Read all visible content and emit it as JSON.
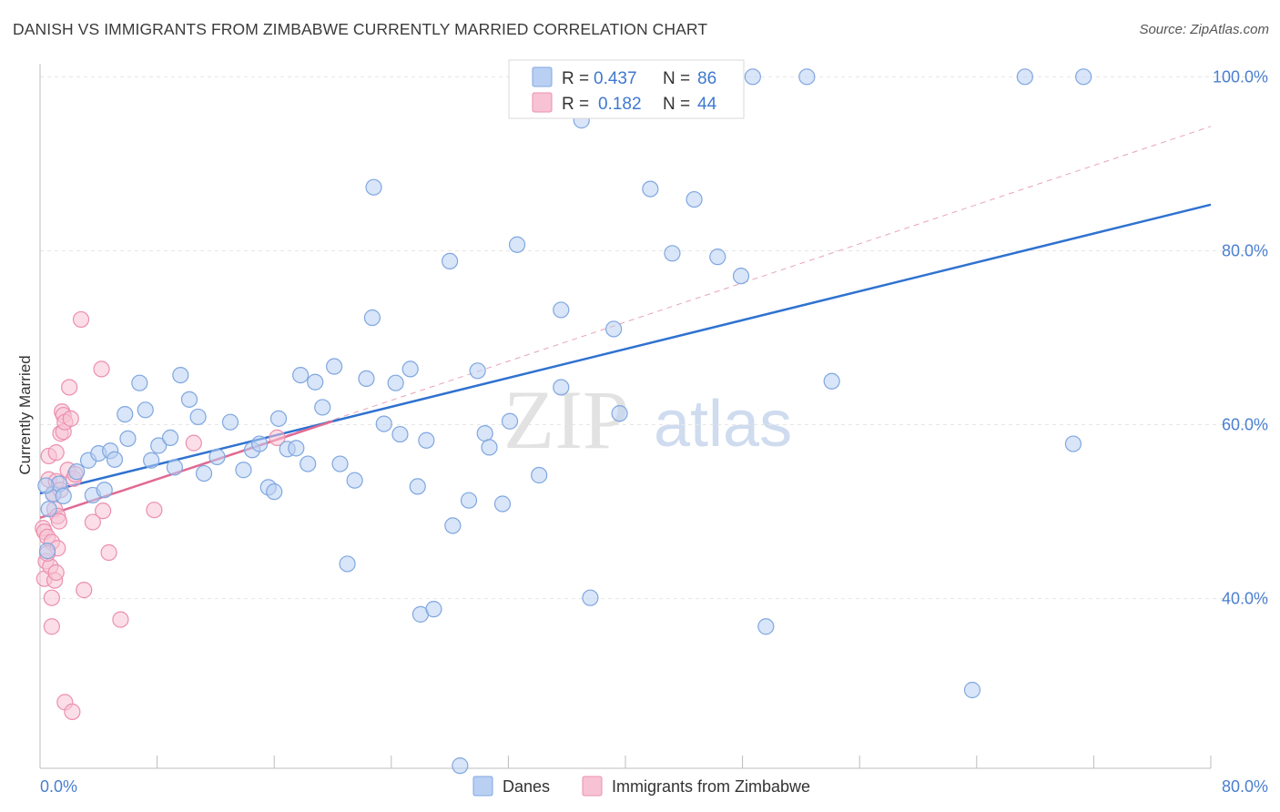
{
  "title": "DANISH VS IMMIGRANTS FROM ZIMBABWE CURRENTLY MARRIED CORRELATION CHART",
  "source": "Source: ZipAtlas.com",
  "watermark": {
    "zip": "ZIP",
    "atlas": "atlas"
  },
  "colors": {
    "danes_fill": "#b9d0f3",
    "danes_stroke": "#7fa7e0",
    "danes_line": "#2f72d0",
    "zim_fill": "#f7c3d4",
    "zim_stroke": "#ec8fae",
    "zim_line": "#e06a93",
    "grid": "#e6e6e6",
    "axis_label": "#4a7fd0"
  },
  "legend": {
    "rows": [
      {
        "r_label": "R =",
        "r_value": "0.437",
        "n_label": "N =",
        "n_value": "86"
      },
      {
        "r_label": "R =",
        "r_value": "0.182",
        "n_label": "N =",
        "n_value": "44"
      }
    ]
  },
  "chart_data": {
    "type": "scatter",
    "xlabel": "",
    "ylabel": "Currently Married",
    "xlim": [
      0,
      80
    ],
    "ylim": [
      20.5,
      101.5
    ],
    "x_tick_labels": [
      {
        "value": 0,
        "label": "0.0%"
      },
      {
        "value": 80,
        "label": "80.0%"
      }
    ],
    "y_tick_labels": [
      {
        "value": 100,
        "label": "100.0%"
      },
      {
        "value": 80,
        "label": "80.0%"
      },
      {
        "value": 60,
        "label": "60.0%"
      },
      {
        "value": 40,
        "label": "40.0%"
      }
    ],
    "grid": true,
    "legend_position": "top-center",
    "series": [
      {
        "name": "Danes",
        "trend": {
          "x": [
            0,
            80
          ],
          "y": [
            52.1,
            85.3
          ]
        },
        "points": [
          [
            0.5,
            45.5
          ],
          [
            0.6,
            50.3
          ],
          [
            0.9,
            52.0
          ],
          [
            1.3,
            53.2
          ],
          [
            1.6,
            51.8
          ],
          [
            2.5,
            54.6
          ],
          [
            3.3,
            55.9
          ],
          [
            3.6,
            51.9
          ],
          [
            4.0,
            56.7
          ],
          [
            4.4,
            52.5
          ],
          [
            4.8,
            57.0
          ],
          [
            5.1,
            56.0
          ],
          [
            5.8,
            61.2
          ],
          [
            6.0,
            58.4
          ],
          [
            6.8,
            64.8
          ],
          [
            7.2,
            61.7
          ],
          [
            7.6,
            55.9
          ],
          [
            8.1,
            57.6
          ],
          [
            8.9,
            58.5
          ],
          [
            9.2,
            55.1
          ],
          [
            9.6,
            65.7
          ],
          [
            10.2,
            62.9
          ],
          [
            10.8,
            60.9
          ],
          [
            11.2,
            54.4
          ],
          [
            12.1,
            56.3
          ],
          [
            13.0,
            60.3
          ],
          [
            13.9,
            54.8
          ],
          [
            14.5,
            57.1
          ],
          [
            15.0,
            57.8
          ],
          [
            15.6,
            52.8
          ],
          [
            16.0,
            52.3
          ],
          [
            16.3,
            60.7
          ],
          [
            16.9,
            57.2
          ],
          [
            17.5,
            57.3
          ],
          [
            17.8,
            65.7
          ],
          [
            18.3,
            55.5
          ],
          [
            18.8,
            64.9
          ],
          [
            19.3,
            62.0
          ],
          [
            20.1,
            66.7
          ],
          [
            20.5,
            55.5
          ],
          [
            21.0,
            44.0
          ],
          [
            21.5,
            53.6
          ],
          [
            22.3,
            65.3
          ],
          [
            22.7,
            72.3
          ],
          [
            22.8,
            87.3
          ],
          [
            23.5,
            60.1
          ],
          [
            24.3,
            64.8
          ],
          [
            24.6,
            58.9
          ],
          [
            25.3,
            66.4
          ],
          [
            26.0,
            38.2
          ],
          [
            25.8,
            52.9
          ],
          [
            26.4,
            58.2
          ],
          [
            26.9,
            38.8
          ],
          [
            28.0,
            78.8
          ],
          [
            28.2,
            48.4
          ],
          [
            28.7,
            20.8
          ],
          [
            29.3,
            51.3
          ],
          [
            29.9,
            66.2
          ],
          [
            30.4,
            59.0
          ],
          [
            30.7,
            57.4
          ],
          [
            31.6,
            50.9
          ],
          [
            32.1,
            60.4
          ],
          [
            32.6,
            80.7
          ],
          [
            34.1,
            54.2
          ],
          [
            35.6,
            64.3
          ],
          [
            35.6,
            73.2
          ],
          [
            37.0,
            95.0
          ],
          [
            37.6,
            40.1
          ],
          [
            38.2,
            100.0
          ],
          [
            39.2,
            71.0
          ],
          [
            39.6,
            61.3
          ],
          [
            41.7,
            87.1
          ],
          [
            43.2,
            79.7
          ],
          [
            44.7,
            85.9
          ],
          [
            46.0,
            100.0
          ],
          [
            46.3,
            79.3
          ],
          [
            47.9,
            77.1
          ],
          [
            48.7,
            100.0
          ],
          [
            49.6,
            36.8
          ],
          [
            52.4,
            100.0
          ],
          [
            54.1,
            65.0
          ],
          [
            63.7,
            29.5
          ],
          [
            67.3,
            100.0
          ],
          [
            70.6,
            57.8
          ],
          [
            71.3,
            100.0
          ],
          [
            0.4,
            53.0
          ]
        ]
      },
      {
        "name": "Immigrants from Zimbabwe",
        "trend": {
          "x": [
            0,
            20
          ],
          "y": [
            49.3,
            60.4
          ]
        },
        "trend_extended": {
          "x": [
            0,
            80
          ],
          "y": [
            49.3,
            94.3
          ]
        },
        "points": [
          [
            0.2,
            48.1
          ],
          [
            0.3,
            47.7
          ],
          [
            0.3,
            42.3
          ],
          [
            0.4,
            44.3
          ],
          [
            0.5,
            47.1
          ],
          [
            0.6,
            53.7
          ],
          [
            0.6,
            56.4
          ],
          [
            0.7,
            43.7
          ],
          [
            0.8,
            46.5
          ],
          [
            0.8,
            36.8
          ],
          [
            0.8,
            40.1
          ],
          [
            0.9,
            52.1
          ],
          [
            1.0,
            50.3
          ],
          [
            1.0,
            42.1
          ],
          [
            1.1,
            53.5
          ],
          [
            1.1,
            43.0
          ],
          [
            1.1,
            56.8
          ],
          [
            1.2,
            49.5
          ],
          [
            1.2,
            45.8
          ],
          [
            1.3,
            48.9
          ],
          [
            1.4,
            59.0
          ],
          [
            1.4,
            52.5
          ],
          [
            1.5,
            61.5
          ],
          [
            1.6,
            61.1
          ],
          [
            1.6,
            59.2
          ],
          [
            1.7,
            60.3
          ],
          [
            1.7,
            28.1
          ],
          [
            1.9,
            54.8
          ],
          [
            2.0,
            64.3
          ],
          [
            2.1,
            60.7
          ],
          [
            2.2,
            27.0
          ],
          [
            2.3,
            53.8
          ],
          [
            2.4,
            54.3
          ],
          [
            2.8,
            72.1
          ],
          [
            3.0,
            41.0
          ],
          [
            3.6,
            48.8
          ],
          [
            4.2,
            66.4
          ],
          [
            4.3,
            50.1
          ],
          [
            4.7,
            45.3
          ],
          [
            5.5,
            37.6
          ],
          [
            7.8,
            50.2
          ],
          [
            10.5,
            57.9
          ],
          [
            16.2,
            58.5
          ],
          [
            0.5,
            45.2
          ]
        ]
      }
    ]
  }
}
